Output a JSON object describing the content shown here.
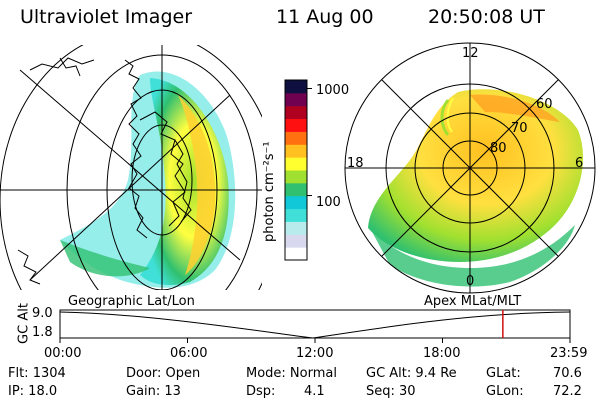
{
  "header": {
    "instrument": "Ultraviolet Imager",
    "date": "11 Aug 00",
    "time": "20:50:08 UT"
  },
  "colorbar": {
    "label": "photon cm⁻²s⁻¹",
    "ticks": [
      {
        "label": "1000",
        "value": 1000
      },
      {
        "label": "100",
        "value": 100
      }
    ],
    "range": [
      25,
      1200
    ],
    "colors": [
      "#ffffff",
      "#d8d8ee",
      "#b8ecec",
      "#40e0d8",
      "#10c8d8",
      "#30c070",
      "#a0e030",
      "#ffff30",
      "#ffc020",
      "#ff7010",
      "#ff1010",
      "#b00020",
      "#700050",
      "#101040"
    ]
  },
  "left_map": {
    "caption": "Geographic Lat/Lon"
  },
  "polar_plot": {
    "caption": "Apex MLat/MLT",
    "lat_labels": [
      "80",
      "70",
      "60"
    ],
    "mlt_labels": {
      "top": "12",
      "left": "18",
      "right": "6",
      "bottom": "0"
    }
  },
  "alt_plot": {
    "ylabel": "GC Alt",
    "y_ticks": [
      "9.0",
      "1.8"
    ],
    "y_range": [
      1.8,
      9.0
    ],
    "x_ticks": [
      "00:00",
      "06:00",
      "12:00",
      "18:00",
      "23:59"
    ],
    "current_hour": 20.84,
    "marker_color": "#d01010"
  },
  "info": {
    "flt": "Flt: 1304",
    "ip": "IP: 18.0",
    "door": "Door: Open",
    "gain": "Gain: 13",
    "mode": "Mode: Normal",
    "dsp_label": "Dsp:",
    "dsp_value": "4.1",
    "gcalt": "GC Alt: 9.4 Re",
    "seq": "Seq: 30",
    "glat_label": "GLat:",
    "glat_value": "70.6",
    "glon_label": "GLon:",
    "glon_value": "72.2"
  }
}
